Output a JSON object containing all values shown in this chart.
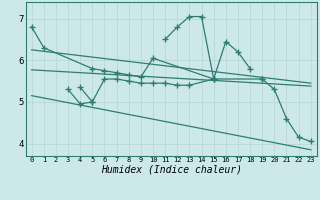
{
  "xlabel": "Humidex (Indice chaleur)",
  "x_ticks": [
    0,
    1,
    2,
    3,
    4,
    5,
    6,
    7,
    8,
    9,
    10,
    11,
    12,
    13,
    14,
    15,
    16,
    17,
    18,
    19,
    20,
    21,
    22,
    23
  ],
  "xlim": [
    -0.5,
    23.5
  ],
  "ylim": [
    3.7,
    7.4
  ],
  "yticks": [
    4,
    5,
    6,
    7
  ],
  "bg_color": "#cce8e8",
  "line_color": "#2e7d72",
  "grid_color": "#b8d8d5",
  "line1": {
    "x": [
      0,
      1,
      5,
      6,
      7,
      8,
      9,
      10,
      15,
      19
    ],
    "y": [
      6.8,
      6.3,
      5.8,
      5.75,
      5.7,
      5.65,
      5.6,
      6.05,
      5.55,
      5.55
    ]
  },
  "line2": {
    "x": [
      4,
      5,
      6,
      7,
      8,
      9,
      10,
      11,
      12,
      13,
      15
    ],
    "y": [
      5.35,
      5.0,
      5.55,
      5.55,
      5.5,
      5.45,
      5.45,
      5.45,
      5.4,
      5.4,
      5.55
    ]
  },
  "line3": {
    "x": [
      3,
      4,
      5
    ],
    "y": [
      5.3,
      4.95,
      5.0
    ]
  },
  "line4": {
    "x": [
      11,
      12,
      13,
      14,
      15,
      16,
      17,
      18
    ],
    "y": [
      6.5,
      6.8,
      7.05,
      7.05,
      5.55,
      6.45,
      6.2,
      5.8
    ]
  },
  "line5": {
    "x": [
      19,
      20,
      21,
      22,
      23
    ],
    "y": [
      5.55,
      5.3,
      4.6,
      4.15,
      4.05
    ]
  },
  "straight1": {
    "x": [
      0,
      23
    ],
    "y": [
      6.25,
      5.45
    ]
  },
  "straight2": {
    "x": [
      0,
      23
    ],
    "y": [
      5.77,
      5.38
    ]
  },
  "straight3": {
    "x": [
      0,
      23
    ],
    "y": [
      5.15,
      3.85
    ]
  }
}
